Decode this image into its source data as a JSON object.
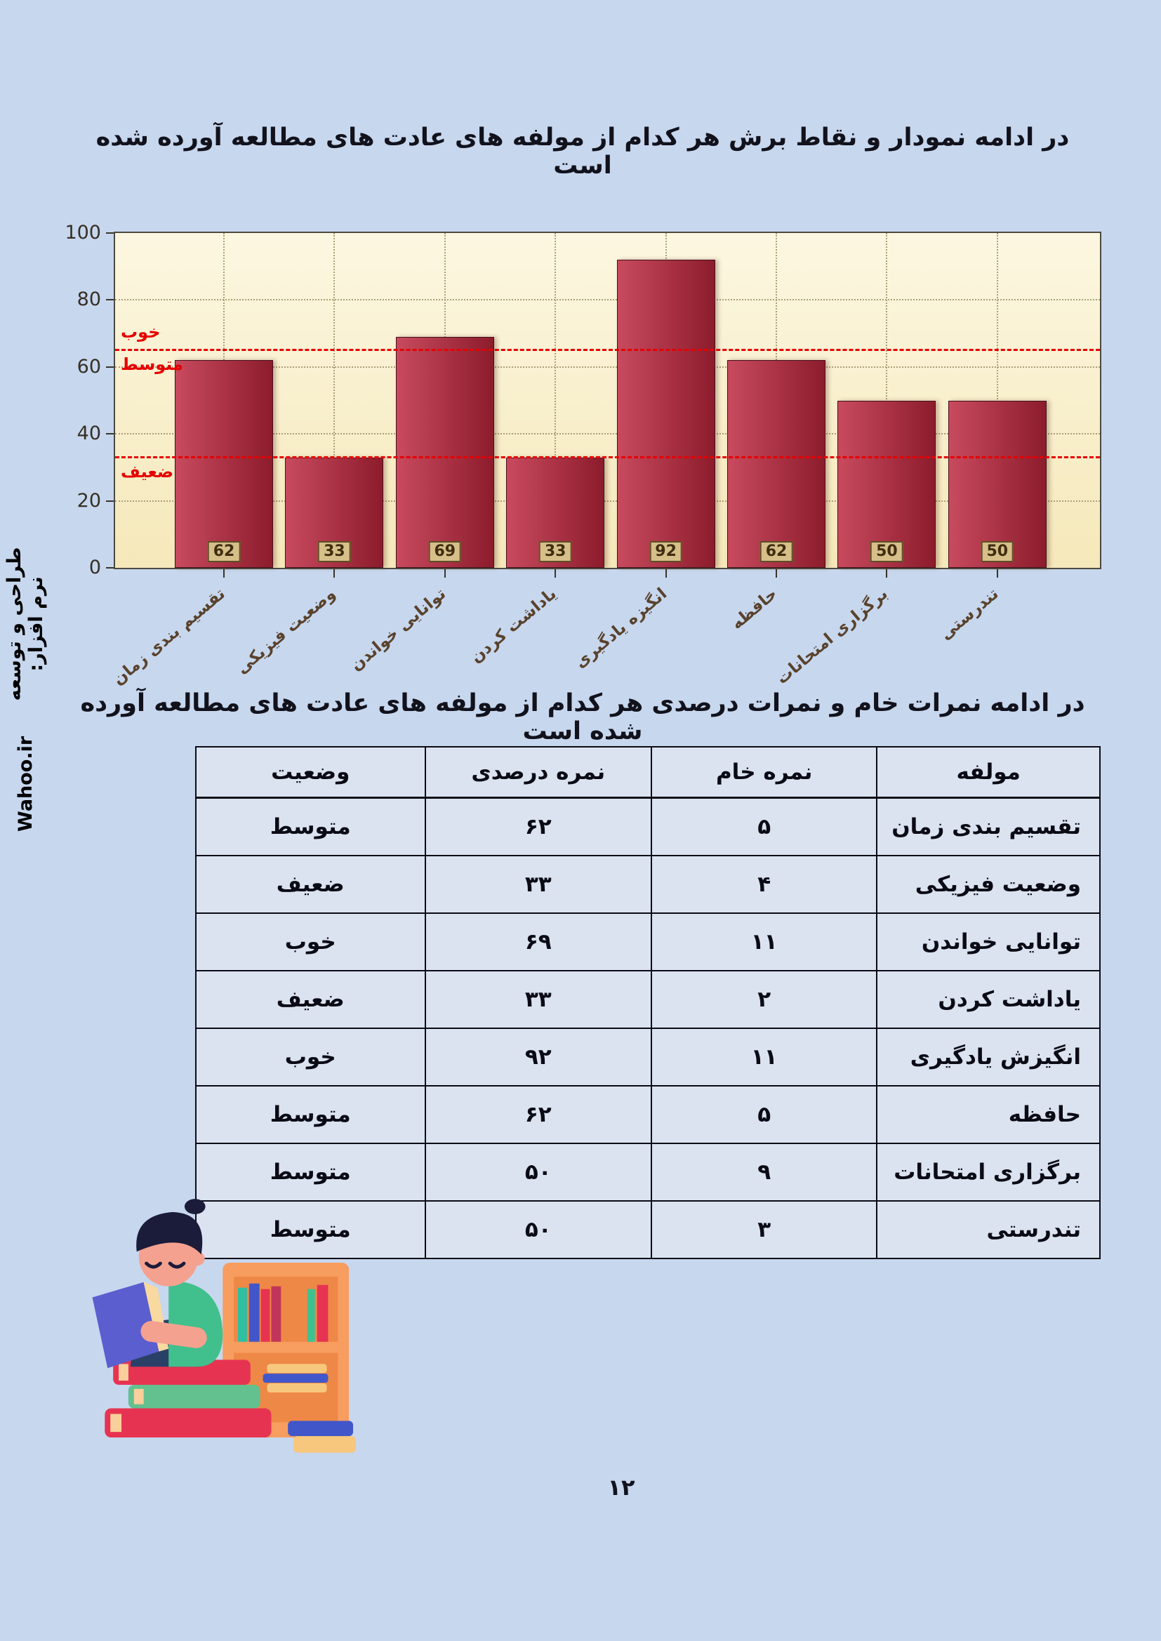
{
  "page": {
    "background": "#c7d7ee",
    "number": "۱۲"
  },
  "sidebar": {
    "text_fa": "طراحی و توسعه نرم افزار:",
    "brand": "Wahoo.ir"
  },
  "section_chart": {
    "title": "در ادامه نمودار و نقاط برش هر کدام از مولفه های عادت های مطالعه آورده شده است"
  },
  "section_table": {
    "title": "در ادامه نمرات خام و نمرات درصدی هر کدام از مولفه های عادت های مطالعه آورده شده است"
  },
  "chart_data": {
    "type": "bar",
    "categories": [
      "تقسیم بندی زمان",
      "وضعیت فیزیکی",
      "توانایی خواندن",
      "یاداشت کردن",
      "انگیزه یادگیری",
      "حافظه",
      "برگزاری امتحانات",
      "تندرستی"
    ],
    "values": [
      62,
      33,
      69,
      33,
      92,
      62,
      50,
      50
    ],
    "ylim": [
      0,
      100
    ],
    "yticks": [
      0,
      20,
      40,
      60,
      80,
      100
    ],
    "grid": "dotted",
    "legend": "none",
    "cutlines": [
      {
        "value": 65,
        "label_above": "خوب",
        "label_below": "متوسط",
        "color": "#e60000"
      },
      {
        "value": 33,
        "label_below": "ضعیف",
        "color": "#e60000"
      }
    ],
    "bar_color_left": "#c84a5e",
    "bar_color_right": "#8c1c2c",
    "plot_bg_top": "#fcf7e1",
    "plot_bg_bottom": "#f5e8ba"
  },
  "table": {
    "headers": {
      "component": "مولفه",
      "raw": "نمره خام",
      "percent": "نمره درصدی",
      "status": "وضعیت"
    },
    "rows": [
      {
        "component": "تقسیم بندی زمان",
        "raw": "۵",
        "percent": "۶۲",
        "status": "متوسط"
      },
      {
        "component": "وضعیت فیزیکی",
        "raw": "۴",
        "percent": "۳۳",
        "status": "ضعیف"
      },
      {
        "component": "توانایی خواندن",
        "raw": "۱۱",
        "percent": "۶۹",
        "status": "خوب"
      },
      {
        "component": "یاداشت کردن",
        "raw": "۲",
        "percent": "۳۳",
        "status": "ضعیف"
      },
      {
        "component": "انگیزش یادگیری",
        "raw": "۱۱",
        "percent": "۹۲",
        "status": "خوب"
      },
      {
        "component": "حافظه",
        "raw": "۵",
        "percent": "۶۲",
        "status": "متوسط"
      },
      {
        "component": "برگزاری امتحانات",
        "raw": "۹",
        "percent": "۵۰",
        "status": "متوسط"
      },
      {
        "component": "تندرستی",
        "raw": "۳",
        "percent": "۵۰",
        "status": "متوسط"
      }
    ]
  }
}
